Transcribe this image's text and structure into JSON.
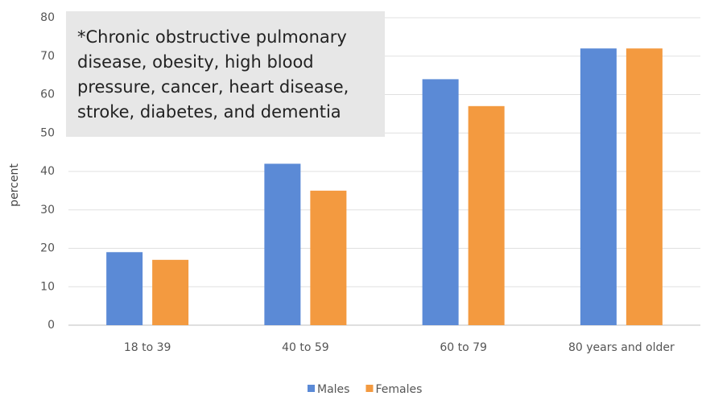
{
  "chart_data": {
    "type": "bar",
    "annotation": [
      "*Chronic obstructive pulmonary",
      "disease, obesity, high blood",
      "pressure, cancer, heart disease,",
      "stroke, diabetes, and dementia"
    ],
    "ylabel": "percent",
    "categories": [
      "18 to 39",
      "40 to 59",
      "60 to 79",
      "80 years and older"
    ],
    "series": [
      {
        "name": "Males",
        "color": "#5b8ad6",
        "values": [
          19,
          42,
          64,
          72
        ]
      },
      {
        "name": "Females",
        "color": "#f39a40",
        "values": [
          17,
          35,
          57,
          72
        ]
      }
    ],
    "ylim": [
      0,
      80
    ],
    "yticks": [
      0,
      10,
      20,
      30,
      40,
      50,
      60,
      70,
      80
    ],
    "grid": true,
    "legend": "bottom"
  }
}
